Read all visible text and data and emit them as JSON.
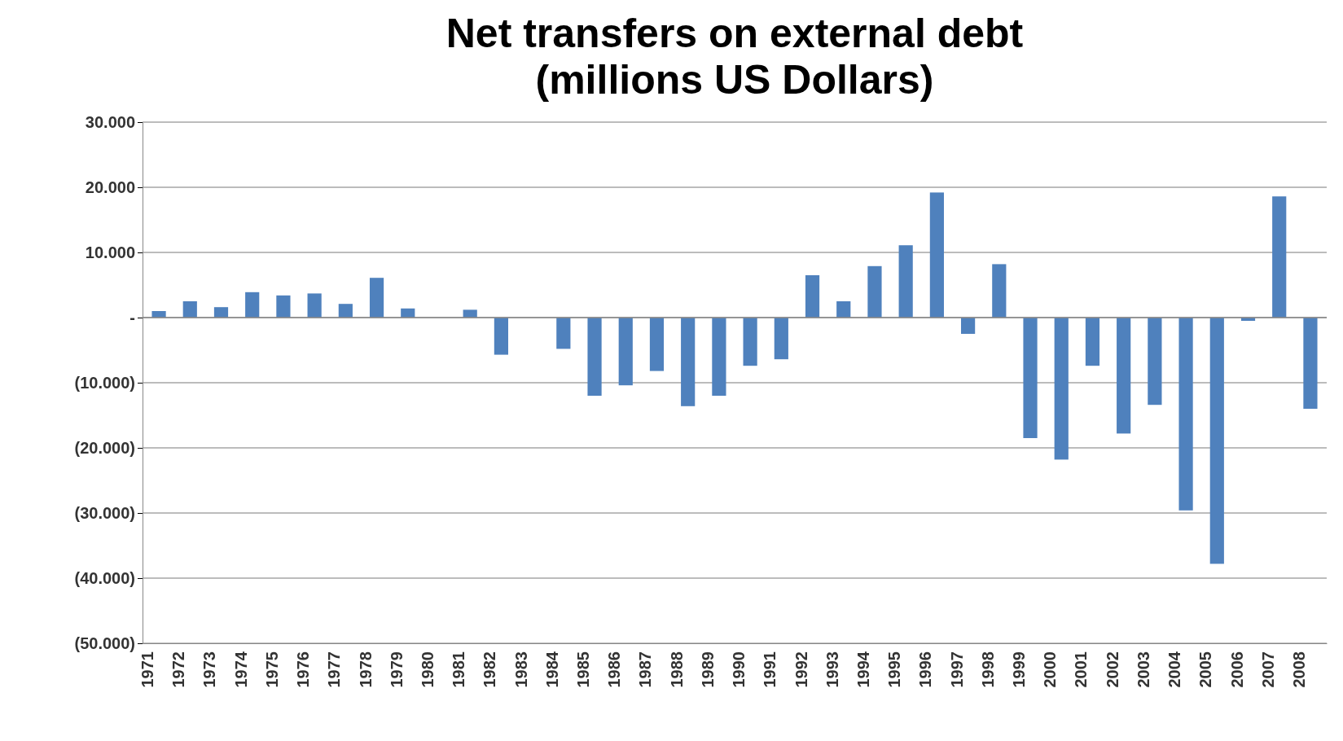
{
  "chart_data": {
    "type": "bar",
    "title": "Net transfers on external debt",
    "subtitle": "(millions US Dollars)",
    "categories": [
      "1971",
      "1972",
      "1973",
      "1974",
      "1975",
      "1976",
      "1977",
      "1978",
      "1979",
      "1980",
      "1981",
      "1982",
      "1983",
      "1984",
      "1985",
      "1986",
      "1987",
      "1988",
      "1989",
      "1990",
      "1991",
      "1992",
      "1993",
      "1994",
      "1995",
      "1996",
      "1997",
      "1998",
      "1999",
      "2000",
      "2001",
      "2002",
      "2003",
      "2004",
      "2005",
      "2006",
      "2007",
      "2008"
    ],
    "values": [
      1000,
      2500,
      1600,
      3900,
      3400,
      3700,
      2100,
      6100,
      1400,
      0,
      1200,
      -5700,
      0,
      -4800,
      -12000,
      -10400,
      -8200,
      -13600,
      -12000,
      -7400,
      -6400,
      6500,
      2500,
      7900,
      11100,
      19200,
      -2500,
      8200,
      -18500,
      -21800,
      -7400,
      -17800,
      -13400,
      -29600,
      -37800,
      -500,
      18600,
      -14000
    ],
    "color": "#4f81bd",
    "ylim": [
      -50000,
      30000
    ],
    "yticks": [
      {
        "value": -50000,
        "label": "(50.000)"
      },
      {
        "value": -40000,
        "label": "(40.000)"
      },
      {
        "value": -30000,
        "label": "(30.000)"
      },
      {
        "value": -20000,
        "label": "(20.000)"
      },
      {
        "value": -10000,
        "label": "(10.000)"
      },
      {
        "value": 0,
        "label": "-"
      },
      {
        "value": 10000,
        "label": "10.000"
      },
      {
        "value": 20000,
        "label": "20.000"
      },
      {
        "value": 30000,
        "label": "30.000"
      }
    ],
    "grid": "y"
  }
}
